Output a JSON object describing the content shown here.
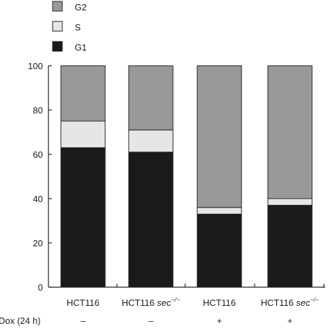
{
  "chart_data": {
    "type": "bar",
    "stacked": true,
    "categories": [
      "HCT116",
      "HCT116 sec⁻/⁻",
      "HCT116",
      "HCT116 sec⁻/⁻"
    ],
    "category_parts": [
      {
        "main": "HCT116",
        "italic": "",
        "sup": ""
      },
      {
        "main": "HCT116 ",
        "italic": "sec",
        "sup": "−/−"
      },
      {
        "main": "HCT116",
        "italic": "",
        "sup": ""
      },
      {
        "main": "HCT116 ",
        "italic": "sec",
        "sup": "−/−"
      }
    ],
    "series": [
      {
        "name": "G1",
        "values": [
          63,
          61,
          33,
          37
        ],
        "color": "#1a1a1a"
      },
      {
        "name": "S",
        "values": [
          12,
          10,
          3,
          3
        ],
        "color": "#e6e6e6"
      },
      {
        "name": "G2",
        "values": [
          25,
          29,
          64,
          60
        ],
        "color": "#999999"
      }
    ],
    "legend_order": [
      "G2",
      "S",
      "G1"
    ],
    "legend_position": "top-left",
    "ylim": [
      0,
      100
    ],
    "yticks": [
      0,
      20,
      40,
      60,
      80,
      100
    ],
    "treatment_row": {
      "label": "Dox (24 h)",
      "values": [
        "–",
        "–",
        "+",
        "+"
      ]
    },
    "grid": false
  }
}
